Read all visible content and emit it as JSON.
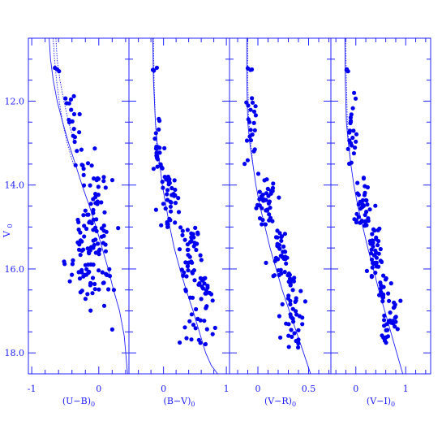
{
  "figure": {
    "ylabel": "V",
    "ylabel_sub": "0",
    "colors": {
      "axis": "#2020ff",
      "points": "#0000ee",
      "model": "#2020ff"
    }
  },
  "chart_data": [
    {
      "type": "scatter",
      "xlabel": "(U−B)",
      "xlabel_sub": "0",
      "xlim": [
        -1.05,
        0.45
      ],
      "ylim": [
        18.5,
        10.5
      ],
      "xticks": [
        -1,
        0
      ],
      "xtick_labels": [
        "-1",
        "0"
      ],
      "yticks": [
        12,
        14,
        16,
        18
      ],
      "ytick_labels": [
        "12.0",
        "14.0",
        "16.0",
        "18.0"
      ],
      "grid": false,
      "model_isochrone": {
        "x": [
          -0.74,
          -0.72,
          -0.68,
          -0.62,
          -0.54,
          -0.45,
          -0.35,
          -0.25,
          -0.14,
          -0.04,
          0.05,
          0.14,
          0.22,
          0.31,
          0.38,
          0.43
        ],
        "y": [
          10.5,
          11.0,
          11.5,
          12.0,
          12.5,
          13.0,
          13.5,
          14.0,
          14.5,
          15.0,
          15.5,
          16.0,
          16.5,
          17.0,
          17.6,
          18.5
        ]
      },
      "model_dotted": [
        {
          "x": [
            -0.68,
            -0.66,
            -0.63,
            -0.59,
            -0.54,
            -0.47,
            -0.38
          ],
          "y": [
            10.5,
            11.0,
            11.5,
            12.0,
            12.5,
            13.0,
            13.5
          ]
        },
        {
          "x": [
            -0.64,
            -0.62,
            -0.58,
            -0.52,
            -0.45,
            -0.36
          ],
          "y": [
            10.5,
            11.0,
            11.5,
            12.0,
            12.5,
            13.0
          ]
        }
      ],
      "clusters": [
        {
          "y_range": [
            11.2,
            11.3
          ],
          "x_center": -0.62,
          "x_spread": 0.03,
          "count": 3
        },
        {
          "y_range": [
            11.8,
            12.3
          ],
          "x_center": -0.45,
          "x_spread": 0.06,
          "count": 6
        },
        {
          "y_range": [
            12.3,
            13.0
          ],
          "x_center": -0.35,
          "x_spread": 0.07,
          "count": 10
        },
        {
          "y_range": [
            13.0,
            13.8
          ],
          "x_center": -0.2,
          "x_spread": 0.08,
          "count": 10
        },
        {
          "y_range": [
            13.8,
            14.6
          ],
          "x_center": -0.03,
          "x_spread": 0.08,
          "count": 22
        },
        {
          "y_range": [
            14.6,
            16.6
          ],
          "x_center": -0.1,
          "x_spread": 0.14,
          "count": 95
        },
        {
          "y_range": [
            16.6,
            17.0
          ],
          "x_center": 0.05,
          "x_spread": 0.12,
          "count": 3
        },
        {
          "y_range": [
            17.3,
            17.5
          ],
          "x_center": 0.22,
          "x_spread": 0.02,
          "count": 1
        }
      ]
    },
    {
      "type": "scatter",
      "xlabel": "(B−V)",
      "xlabel_sub": "0",
      "xlim": [
        -0.55,
        1.05
      ],
      "ylim": [
        18.5,
        10.5
      ],
      "xticks": [
        0,
        1
      ],
      "xtick_labels": [
        "0",
        "1"
      ],
      "yticks": [
        12,
        14,
        16,
        18
      ],
      "grid": false,
      "model_isochrone": {
        "x": [
          -0.17,
          -0.16,
          -0.13,
          -0.1,
          -0.06,
          -0.02,
          0.04,
          0.1,
          0.17,
          0.26,
          0.36,
          0.47,
          0.57,
          0.67,
          0.76,
          0.86
        ],
        "y": [
          10.5,
          11.5,
          12.5,
          13.0,
          13.5,
          14.0,
          14.5,
          15.0,
          15.5,
          16.0,
          16.5,
          17.0,
          17.5,
          18.0,
          18.3,
          18.5
        ]
      },
      "model_dotted": [
        {
          "x": [
            -0.16,
            -0.15,
            -0.13,
            -0.11,
            -0.08
          ],
          "y": [
            10.5,
            11.5,
            12.5,
            13.0,
            13.5
          ]
        }
      ],
      "clusters": [
        {
          "y_range": [
            11.2,
            11.3
          ],
          "x_center": -0.13,
          "x_spread": 0.03,
          "count": 3
        },
        {
          "y_range": [
            11.8,
            13.8
          ],
          "x_center": -0.08,
          "x_spread": 0.04,
          "count": 22
        },
        {
          "y_range": [
            13.8,
            15.0
          ],
          "x_center": 0.1,
          "x_spread": 0.09,
          "count": 38
        },
        {
          "y_range": [
            15.0,
            16.2
          ],
          "x_center": 0.4,
          "x_spread": 0.09,
          "count": 40
        },
        {
          "y_range": [
            16.2,
            17.8
          ],
          "x_center": 0.55,
          "x_spread": 0.11,
          "count": 45
        }
      ]
    },
    {
      "type": "scatter",
      "xlabel": "(V−R)",
      "xlabel_sub": "0",
      "xlim": [
        -0.28,
        0.72
      ],
      "ylim": [
        18.5,
        10.5
      ],
      "xticks": [
        0,
        0.5
      ],
      "xtick_labels": [
        "0",
        "0.5"
      ],
      "yticks": [
        12,
        14,
        16,
        18
      ],
      "grid": false,
      "model_isochrone": {
        "x": [
          -0.11,
          -0.11,
          -0.1,
          -0.08,
          -0.05,
          -0.02,
          0.02,
          0.07,
          0.12,
          0.18,
          0.24,
          0.31,
          0.38,
          0.45,
          0.52
        ],
        "y": [
          10.5,
          11.5,
          12.5,
          13.0,
          13.5,
          14.0,
          14.5,
          15.0,
          15.5,
          16.0,
          16.5,
          17.0,
          17.5,
          18.0,
          18.5
        ]
      },
      "model_dotted": [
        {
          "x": [
            -0.1,
            -0.1,
            -0.09,
            -0.07,
            -0.05
          ],
          "y": [
            10.5,
            11.5,
            12.5,
            13.0,
            13.5
          ]
        }
      ],
      "clusters": [
        {
          "y_range": [
            11.2,
            11.3
          ],
          "x_center": -0.1,
          "x_spread": 0.02,
          "count": 3
        },
        {
          "y_range": [
            11.8,
            13.8
          ],
          "x_center": -0.06,
          "x_spread": 0.03,
          "count": 22
        },
        {
          "y_range": [
            13.8,
            15.0
          ],
          "x_center": 0.07,
          "x_spread": 0.05,
          "count": 38
        },
        {
          "y_range": [
            15.0,
            16.2
          ],
          "x_center": 0.22,
          "x_spread": 0.05,
          "count": 40
        },
        {
          "y_range": [
            16.2,
            17.9
          ],
          "x_center": 0.32,
          "x_spread": 0.06,
          "count": 45
        }
      ]
    },
    {
      "type": "scatter",
      "xlabel": "(V−I)",
      "xlabel_sub": "0",
      "xlim": [
        -0.5,
        1.5
      ],
      "ylim": [
        18.5,
        10.5
      ],
      "xticks": [
        0,
        1
      ],
      "xtick_labels": [
        "0",
        "1"
      ],
      "yticks": [
        12,
        14,
        16,
        18
      ],
      "grid": false,
      "model_isochrone": {
        "x": [
          -0.22,
          -0.21,
          -0.19,
          -0.15,
          -0.1,
          -0.04,
          0.04,
          0.14,
          0.24,
          0.35,
          0.46,
          0.58,
          0.7,
          0.82,
          0.94
        ],
        "y": [
          10.5,
          11.5,
          12.5,
          13.0,
          13.5,
          14.0,
          14.5,
          15.0,
          15.5,
          16.0,
          16.5,
          17.0,
          17.5,
          18.0,
          18.5
        ]
      },
      "model_dotted": [
        {
          "x": [
            -0.2,
            -0.19,
            -0.17,
            -0.14,
            -0.1
          ],
          "y": [
            10.5,
            11.5,
            12.5,
            13.0,
            13.5
          ]
        }
      ],
      "clusters": [
        {
          "y_range": [
            11.2,
            11.3
          ],
          "x_center": -0.18,
          "x_spread": 0.03,
          "count": 3
        },
        {
          "y_range": [
            11.8,
            13.8
          ],
          "x_center": -0.1,
          "x_spread": 0.05,
          "count": 22
        },
        {
          "y_range": [
            13.8,
            15.0
          ],
          "x_center": 0.14,
          "x_spread": 0.09,
          "count": 38
        },
        {
          "y_range": [
            15.0,
            16.2
          ],
          "x_center": 0.4,
          "x_spread": 0.09,
          "count": 40
        },
        {
          "y_range": [
            16.2,
            17.8
          ],
          "x_center": 0.62,
          "x_spread": 0.1,
          "count": 45
        }
      ]
    }
  ]
}
